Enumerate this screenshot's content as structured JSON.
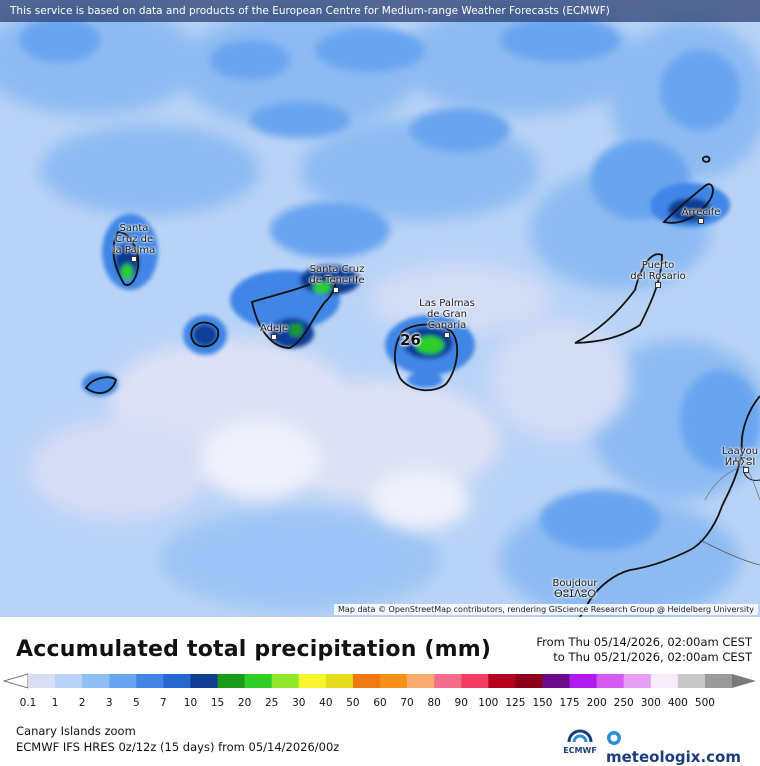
{
  "notice": "This service is based on data and products of the European Centre for Medium-range Weather Forecasts (ECMWF)",
  "attribution": "Map data © OpenStreetMap contributors, rendering GIScience Research Group @ Heidelberg University",
  "title": "Accumulated total precipitation (mm)",
  "period": {
    "from": "From Thu 05/14/2026, 02:00am CEST",
    "to": "to Thu 05/21/2026, 02:00am CEST"
  },
  "region": "Canary Islands zoom",
  "model": "ECMWF IFS HRES 0z/12z (15 days) from  05/14/2026/00z",
  "max_value": "26",
  "logos": {
    "ecmwf": "ECMWF",
    "meteologix": "meteologix.com"
  },
  "cities": [
    {
      "name": "Santa Cruz de la Palma",
      "label": "Santa\nCruz de\nla Palma"
    },
    {
      "name": "Santa Cruz de Tenerife",
      "label": "Santa Cruz\nde Tenerife"
    },
    {
      "name": "Adeje",
      "label": "Adeje"
    },
    {
      "name": "Las Palmas de Gran Canaria",
      "label": "Las Palmas\nde Gran\nCanaria"
    },
    {
      "name": "Puerto del Rosario",
      "label": "Puerto\ndel Rosario"
    },
    {
      "name": "Arrecife",
      "label": "Arrecife"
    },
    {
      "name": "Laayoune",
      "label": "Laayou\nⵍⵄⵢⵓⵏ"
    },
    {
      "name": "Boujdour",
      "label": "Boujdour\nⴱⵓⵊⴷⵓⵔ"
    }
  ],
  "legend": {
    "labels": [
      "0.1",
      "1",
      "2",
      "3",
      "5",
      "7",
      "10",
      "15",
      "20",
      "25",
      "30",
      "40",
      "50",
      "60",
      "70",
      "80",
      "90",
      "100",
      "125",
      "150",
      "175",
      "200",
      "250",
      "300",
      "400",
      "500"
    ],
    "colors": [
      "#d8dcf4",
      "#b6d2f7",
      "#8fbef5",
      "#67a5f0",
      "#3f86e6",
      "#2568d0",
      "#103e94",
      "#1a9b1a",
      "#2fce25",
      "#8fe82c",
      "#f6f52e",
      "#e5dc1c",
      "#f07a10",
      "#f7901a",
      "#f8ad6e",
      "#f66d8b",
      "#f23a63",
      "#b5001e",
      "#8a0018",
      "#6c0a8a",
      "#b21aef",
      "#d55af2",
      "#e69ff3",
      "#f6ecfb",
      "#c8c8c8",
      "#9a9a9a"
    ],
    "under_color": "#ffffff",
    "over_color": "#7a7a7a"
  }
}
